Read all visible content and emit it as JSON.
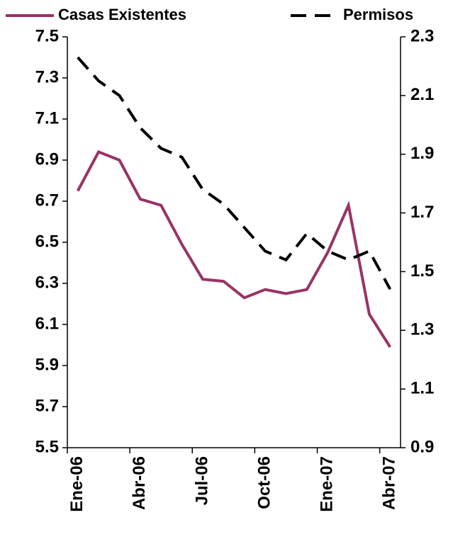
{
  "chart_data": {
    "type": "line",
    "categories": [
      "Ene-06",
      null,
      null,
      "Abr-06",
      null,
      null,
      "Jul-06",
      null,
      null,
      "Oct-06",
      null,
      null,
      "Ene-07",
      null,
      null,
      "Abr-07"
    ],
    "series": [
      {
        "name": "Casas Existentes",
        "color": "#993366",
        "dash": false,
        "values": [
          6.75,
          6.94,
          6.9,
          6.71,
          6.68,
          6.49,
          6.32,
          6.31,
          6.23,
          6.27,
          6.25,
          6.27,
          6.45,
          6.68,
          6.15,
          5.99
        ]
      },
      {
        "name": "Permisos",
        "color": "#000000",
        "dash": true,
        "axis": "y2",
        "values": [
          2.23,
          2.15,
          2.1,
          1.99,
          1.92,
          1.89,
          1.78,
          1.73,
          1.65,
          1.57,
          1.54,
          1.63,
          1.57,
          1.54,
          1.57,
          1.44
        ]
      }
    ],
    "ylim": [
      5.5,
      7.5
    ],
    "yticks": [
      5.5,
      5.7,
      5.9,
      6.1,
      6.3,
      6.5,
      6.7,
      6.9,
      7.1,
      7.3,
      7.5
    ],
    "y2lim": [
      0.9,
      2.3
    ],
    "y2ticks": [
      0.9,
      1.1,
      1.3,
      1.5,
      1.7,
      1.9,
      2.1,
      2.3
    ],
    "grid": false
  }
}
